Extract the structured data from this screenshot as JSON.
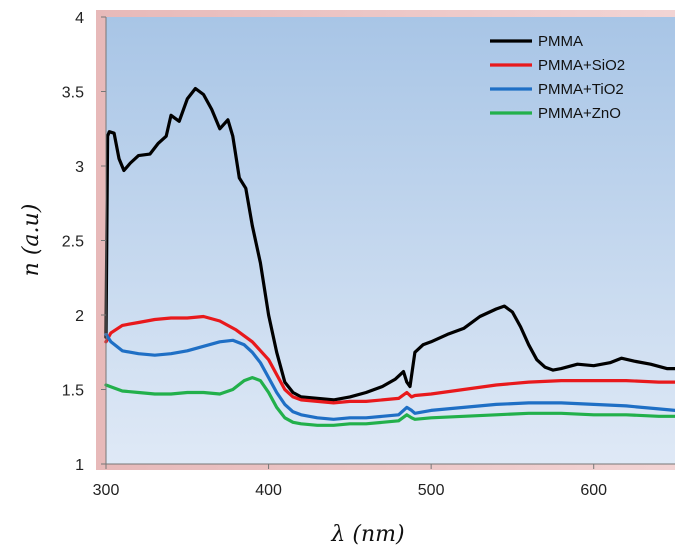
{
  "chart_data": {
    "type": "line",
    "xlabel": "λ (nm)",
    "ylabel": "n (a.u)",
    "xlim": [
      300,
      650
    ],
    "ylim": [
      1,
      4
    ],
    "x_ticks": [
      "300",
      "400",
      "500",
      "600"
    ],
    "y_ticks": [
      "1",
      "1.5",
      "2",
      "2.5",
      "3",
      "3.5",
      "4"
    ],
    "legend_position": "top-right",
    "grid": false,
    "background": "blue gradient",
    "series": [
      {
        "name": "PMMA",
        "color": "#000000",
        "points": [
          [
            300,
            1.85
          ],
          [
            301,
            3.2
          ],
          [
            302,
            3.23
          ],
          [
            305,
            3.22
          ],
          [
            308,
            3.05
          ],
          [
            311,
            2.97
          ],
          [
            315,
            3.02
          ],
          [
            320,
            3.07
          ],
          [
            327,
            3.08
          ],
          [
            332,
            3.15
          ],
          [
            337,
            3.2
          ],
          [
            340,
            3.34
          ],
          [
            345,
            3.3
          ],
          [
            350,
            3.45
          ],
          [
            355,
            3.52
          ],
          [
            360,
            3.48
          ],
          [
            365,
            3.38
          ],
          [
            370,
            3.25
          ],
          [
            375,
            3.31
          ],
          [
            378,
            3.2
          ],
          [
            382,
            2.92
          ],
          [
            386,
            2.85
          ],
          [
            390,
            2.6
          ],
          [
            395,
            2.35
          ],
          [
            400,
            2.0
          ],
          [
            405,
            1.75
          ],
          [
            410,
            1.55
          ],
          [
            415,
            1.48
          ],
          [
            420,
            1.45
          ],
          [
            430,
            1.44
          ],
          [
            440,
            1.43
          ],
          [
            450,
            1.45
          ],
          [
            460,
            1.48
          ],
          [
            470,
            1.52
          ],
          [
            478,
            1.57
          ],
          [
            483,
            1.62
          ],
          [
            485,
            1.55
          ],
          [
            487,
            1.52
          ],
          [
            490,
            1.75
          ],
          [
            495,
            1.8
          ],
          [
            500,
            1.82
          ],
          [
            510,
            1.87
          ],
          [
            520,
            1.91
          ],
          [
            530,
            1.99
          ],
          [
            540,
            2.04
          ],
          [
            545,
            2.06
          ],
          [
            550,
            2.02
          ],
          [
            555,
            1.92
          ],
          [
            560,
            1.8
          ],
          [
            565,
            1.7
          ],
          [
            570,
            1.65
          ],
          [
            575,
            1.63
          ],
          [
            580,
            1.64
          ],
          [
            590,
            1.67
          ],
          [
            600,
            1.66
          ],
          [
            610,
            1.68
          ],
          [
            617,
            1.71
          ],
          [
            625,
            1.69
          ],
          [
            635,
            1.67
          ],
          [
            645,
            1.64
          ],
          [
            650,
            1.64
          ]
        ]
      },
      {
        "name": "PMMA+SiO2",
        "color": "#e8191c",
        "points": [
          [
            300,
            1.82
          ],
          [
            303,
            1.88
          ],
          [
            310,
            1.93
          ],
          [
            320,
            1.95
          ],
          [
            330,
            1.97
          ],
          [
            340,
            1.98
          ],
          [
            350,
            1.98
          ],
          [
            360,
            1.99
          ],
          [
            370,
            1.96
          ],
          [
            380,
            1.9
          ],
          [
            390,
            1.82
          ],
          [
            400,
            1.7
          ],
          [
            405,
            1.6
          ],
          [
            410,
            1.5
          ],
          [
            415,
            1.45
          ],
          [
            420,
            1.43
          ],
          [
            430,
            1.42
          ],
          [
            440,
            1.41
          ],
          [
            450,
            1.42
          ],
          [
            460,
            1.42
          ],
          [
            470,
            1.43
          ],
          [
            480,
            1.44
          ],
          [
            485,
            1.48
          ],
          [
            488,
            1.45
          ],
          [
            490,
            1.46
          ],
          [
            500,
            1.47
          ],
          [
            520,
            1.5
          ],
          [
            540,
            1.53
          ],
          [
            560,
            1.55
          ],
          [
            580,
            1.56
          ],
          [
            600,
            1.56
          ],
          [
            620,
            1.56
          ],
          [
            640,
            1.55
          ],
          [
            650,
            1.55
          ]
        ]
      },
      {
        "name": "PMMA+TiO2",
        "color": "#1f6fc5",
        "points": [
          [
            300,
            1.87
          ],
          [
            303,
            1.82
          ],
          [
            310,
            1.76
          ],
          [
            320,
            1.74
          ],
          [
            330,
            1.73
          ],
          [
            340,
            1.74
          ],
          [
            350,
            1.76
          ],
          [
            360,
            1.79
          ],
          [
            370,
            1.82
          ],
          [
            378,
            1.83
          ],
          [
            385,
            1.8
          ],
          [
            390,
            1.75
          ],
          [
            395,
            1.68
          ],
          [
            400,
            1.58
          ],
          [
            405,
            1.48
          ],
          [
            410,
            1.4
          ],
          [
            415,
            1.35
          ],
          [
            420,
            1.33
          ],
          [
            430,
            1.31
          ],
          [
            440,
            1.3
          ],
          [
            450,
            1.31
          ],
          [
            460,
            1.31
          ],
          [
            470,
            1.32
          ],
          [
            480,
            1.33
          ],
          [
            485,
            1.38
          ],
          [
            488,
            1.36
          ],
          [
            490,
            1.34
          ],
          [
            500,
            1.36
          ],
          [
            520,
            1.38
          ],
          [
            540,
            1.4
          ],
          [
            560,
            1.41
          ],
          [
            580,
            1.41
          ],
          [
            600,
            1.4
          ],
          [
            620,
            1.39
          ],
          [
            640,
            1.37
          ],
          [
            650,
            1.36
          ]
        ]
      },
      {
        "name": "PMMA+ZnO",
        "color": "#22b04b",
        "points": [
          [
            300,
            1.53
          ],
          [
            305,
            1.51
          ],
          [
            310,
            1.49
          ],
          [
            320,
            1.48
          ],
          [
            330,
            1.47
          ],
          [
            340,
            1.47
          ],
          [
            350,
            1.48
          ],
          [
            360,
            1.48
          ],
          [
            370,
            1.47
          ],
          [
            378,
            1.5
          ],
          [
            385,
            1.56
          ],
          [
            390,
            1.58
          ],
          [
            395,
            1.56
          ],
          [
            400,
            1.48
          ],
          [
            405,
            1.38
          ],
          [
            410,
            1.31
          ],
          [
            415,
            1.28
          ],
          [
            420,
            1.27
          ],
          [
            430,
            1.26
          ],
          [
            440,
            1.26
          ],
          [
            450,
            1.27
          ],
          [
            460,
            1.27
          ],
          [
            470,
            1.28
          ],
          [
            480,
            1.29
          ],
          [
            485,
            1.33
          ],
          [
            488,
            1.31
          ],
          [
            490,
            1.3
          ],
          [
            500,
            1.31
          ],
          [
            520,
            1.32
          ],
          [
            540,
            1.33
          ],
          [
            560,
            1.34
          ],
          [
            580,
            1.34
          ],
          [
            600,
            1.33
          ],
          [
            620,
            1.33
          ],
          [
            640,
            1.32
          ],
          [
            650,
            1.32
          ]
        ]
      }
    ]
  }
}
